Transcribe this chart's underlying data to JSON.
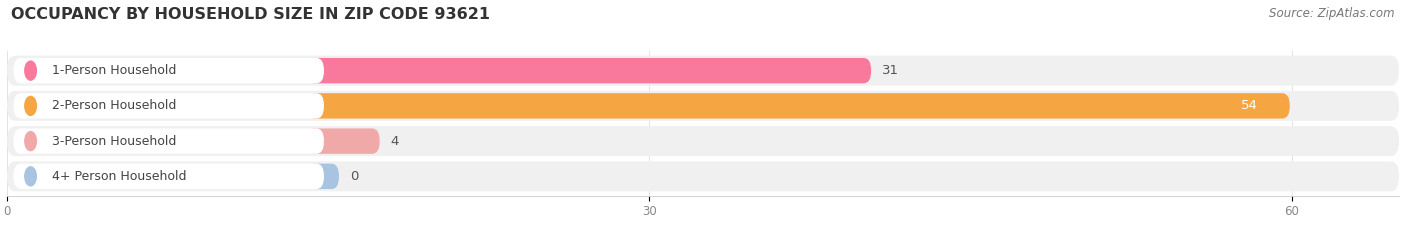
{
  "title": "OCCUPANCY BY HOUSEHOLD SIZE IN ZIP CODE 93621",
  "source": "Source: ZipAtlas.com",
  "categories": [
    "1-Person Household",
    "2-Person Household",
    "3-Person Household",
    "4+ Person Household"
  ],
  "values": [
    31,
    54,
    4,
    0
  ],
  "bar_colors": [
    "#f8799c",
    "#f5a642",
    "#f0a8a8",
    "#a8c4e0"
  ],
  "xlim": [
    0,
    65
  ],
  "xticks": [
    0,
    30,
    60
  ],
  "title_fontsize": 11.5,
  "source_fontsize": 8.5,
  "bar_label_fontsize": 9.5,
  "category_fontsize": 9,
  "background_color": "#ffffff",
  "bar_bg_color": "#ebebeb",
  "title_color": "#333333",
  "source_color": "#777777",
  "row_bg_color": "#f0f0f0"
}
